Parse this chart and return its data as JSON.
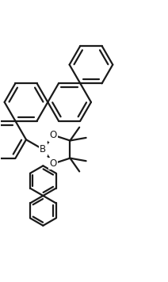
{
  "background_color": "#ffffff",
  "line_color": "#1a1a1a",
  "line_width": 1.6,
  "label_fontsize": 8.5,
  "fig_width": 2.12,
  "fig_height": 3.56,
  "dpi": 100,
  "xlim": [
    -0.2,
    2.2
  ],
  "ylim": [
    -1.5,
    3.2
  ]
}
